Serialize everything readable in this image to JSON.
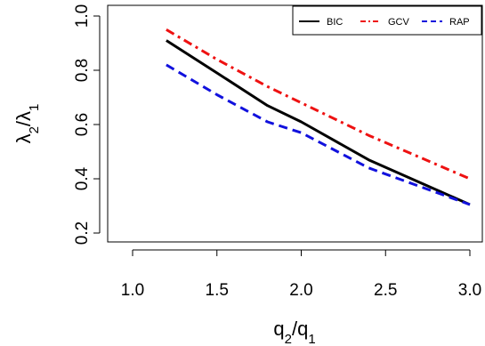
{
  "chart_data": {
    "type": "line",
    "title": "",
    "xlabel": {
      "base": "q",
      "sub": "2",
      "sep": "/",
      "base2": "q",
      "sub2": "1"
    },
    "ylabel": {
      "base": "λ",
      "sub": "2",
      "sep": "/",
      "base2": "λ",
      "sub2": "1"
    },
    "xlim": [
      1.0,
      3.0
    ],
    "ylim": [
      0.2,
      1.0
    ],
    "xticks": [
      "1.0",
      "1.5",
      "2.0",
      "2.5",
      "3.0"
    ],
    "yticks": [
      "0.2",
      "0.4",
      "0.6",
      "0.8",
      "1.0"
    ],
    "grid": false,
    "legend_position": "top-right",
    "x": [
      1.2,
      1.5,
      1.8,
      2.0,
      2.4,
      3.0
    ],
    "series": [
      {
        "name": "BIC",
        "color": "#000000",
        "dash": "solid",
        "values": [
          0.91,
          0.79,
          0.67,
          0.61,
          0.47,
          0.305
        ]
      },
      {
        "name": "GCV",
        "color": "#ee1111",
        "dash": "dashdot",
        "values": [
          0.95,
          0.84,
          0.74,
          0.68,
          0.56,
          0.4
        ]
      },
      {
        "name": "RAP",
        "color": "#1111dd",
        "dash": "dashed",
        "values": [
          0.82,
          0.71,
          0.61,
          0.57,
          0.44,
          0.305
        ]
      }
    ]
  }
}
